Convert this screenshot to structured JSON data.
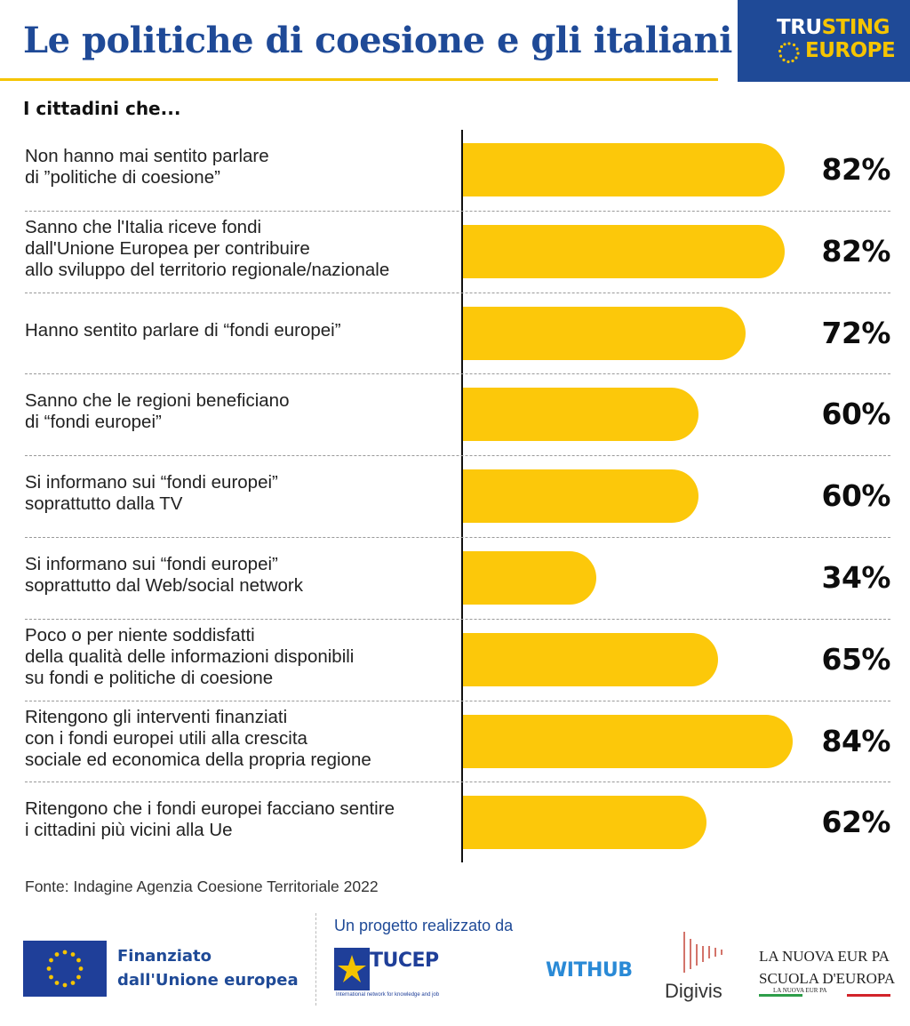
{
  "header": {
    "title": "Le politiche di coesione e gli italiani",
    "brand_line1_a": "TRU",
    "brand_line1_b": "STING",
    "brand_line2": "EUROPE",
    "subtitle": "I cittadini che..."
  },
  "chart_data": {
    "type": "bar",
    "orientation": "horizontal",
    "unit": "%",
    "xlim": [
      0,
      100
    ],
    "bar_color": "#fcc80a",
    "categories": [
      [
        "Non hanno mai sentito parlare",
        "di ”politiche di coesione”"
      ],
      [
        "Sanno che l'Italia riceve fondi",
        "dall'Unione Europea per contribuire",
        "allo sviluppo del territorio regionale/nazionale"
      ],
      [
        "Hanno sentito parlare di “fondi europei”"
      ],
      [
        "Sanno che le regioni beneficiano",
        "di “fondi europei”"
      ],
      [
        "Si informano sui “fondi europei”",
        "soprattutto dalla TV"
      ],
      [
        "Si informano sui “fondi europei”",
        "soprattutto dal Web/social network"
      ],
      [
        "Poco o per niente soddisfatti",
        "della qualità delle informazioni disponibili",
        "su fondi e politiche di coesione"
      ],
      [
        "Ritengono gli interventi finanziati",
        "con i fondi europei utili alla crescita",
        "sociale ed economica della propria regione"
      ],
      [
        "Ritengono che i fondi europei facciano sentire",
        "i cittadini più vicini alla Ue"
      ]
    ],
    "values": [
      82,
      82,
      72,
      60,
      60,
      34,
      65,
      84,
      62
    ],
    "value_labels": [
      "82%",
      "82%",
      "72%",
      "60%",
      "60%",
      "34%",
      "65%",
      "84%",
      "62%"
    ]
  },
  "source": "Fonte: Indagine Agenzia Coesione Territoriale 2022",
  "footer": {
    "eu_line1": "Finanziato",
    "eu_line2": "dall'Unione europea",
    "project_label": "Un progetto realizzato da",
    "tucep_name": "TUCEP",
    "tucep_sub": "International network for knowledge and job",
    "withhub": "WITHUB",
    "digivis": "Digivis",
    "lne_line1": "LA NUOVA EUR PA",
    "lne_line2": "SCUOLA D'EUROPA",
    "lne_line3": "LA NUOVA EUR PA"
  },
  "colors": {
    "brand_blue": "#1f4a97",
    "accent_yellow": "#f5c400",
    "bar_yellow": "#fcc80a"
  }
}
